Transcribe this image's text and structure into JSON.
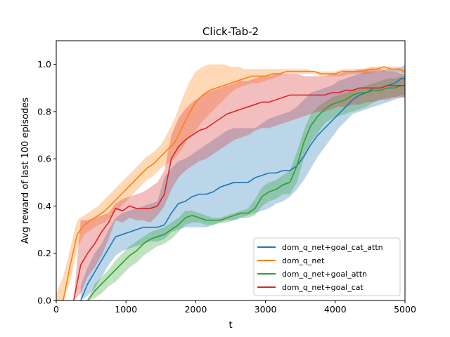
{
  "chart_data": {
    "type": "line",
    "title": "Click-Tab-2",
    "xlabel": "t",
    "ylabel": "Avg reward of last 100 episodes",
    "xlim": [
      0,
      5000
    ],
    "ylim": [
      0,
      1.1
    ],
    "xticks": [
      "0",
      "1000",
      "2000",
      "3000",
      "4000",
      "5000"
    ],
    "yticks": [
      "0.0",
      "0.2",
      "0.4",
      "0.6",
      "0.8",
      "1.0"
    ],
    "grid": false,
    "legend_position": "lower-right",
    "series": [
      {
        "name": "dom_q_net+goal_cat_attn",
        "color": "#1f77b4",
        "x": [
          350,
          450,
          550,
          650,
          750,
          850,
          950,
          1050,
          1150,
          1250,
          1350,
          1450,
          1550,
          1650,
          1750,
          1850,
          1950,
          2050,
          2150,
          2250,
          2350,
          2450,
          2550,
          2650,
          2750,
          2850,
          2950,
          3050,
          3150,
          3250,
          3350,
          3450,
          3550,
          3650,
          3750,
          3850,
          3950,
          4050,
          4150,
          4250,
          4350,
          4450,
          4550,
          4650,
          4750,
          4850,
          4950,
          5000
        ],
        "mean": [
          0.0,
          0.07,
          0.12,
          0.17,
          0.22,
          0.27,
          0.28,
          0.29,
          0.3,
          0.31,
          0.31,
          0.31,
          0.32,
          0.37,
          0.41,
          0.42,
          0.44,
          0.45,
          0.45,
          0.46,
          0.48,
          0.49,
          0.5,
          0.5,
          0.5,
          0.52,
          0.53,
          0.54,
          0.54,
          0.55,
          0.55,
          0.57,
          0.61,
          0.66,
          0.7,
          0.73,
          0.76,
          0.79,
          0.82,
          0.85,
          0.87,
          0.88,
          0.9,
          0.9,
          0.91,
          0.92,
          0.94,
          0.94
        ],
        "upper": [
          0.06,
          0.14,
          0.2,
          0.24,
          0.3,
          0.35,
          0.37,
          0.38,
          0.39,
          0.4,
          0.41,
          0.42,
          0.52,
          0.56,
          0.59,
          0.6,
          0.62,
          0.64,
          0.66,
          0.68,
          0.7,
          0.72,
          0.73,
          0.73,
          0.73,
          0.73,
          0.75,
          0.77,
          0.78,
          0.79,
          0.8,
          0.82,
          0.85,
          0.88,
          0.89,
          0.9,
          0.91,
          0.93,
          0.94,
          0.95,
          0.96,
          0.97,
          0.97,
          0.97,
          0.98,
          0.98,
          0.99,
          1.0
        ],
        "lower": [
          0.0,
          0.02,
          0.05,
          0.1,
          0.15,
          0.19,
          0.21,
          0.22,
          0.23,
          0.24,
          0.25,
          0.25,
          0.26,
          0.29,
          0.3,
          0.31,
          0.31,
          0.31,
          0.31,
          0.32,
          0.33,
          0.34,
          0.34,
          0.35,
          0.36,
          0.37,
          0.38,
          0.39,
          0.41,
          0.42,
          0.44,
          0.47,
          0.51,
          0.56,
          0.61,
          0.65,
          0.69,
          0.73,
          0.76,
          0.79,
          0.8,
          0.81,
          0.82,
          0.83,
          0.84,
          0.85,
          0.86,
          0.86
        ]
      },
      {
        "name": "dom_q_net",
        "color": "#ff7f0e",
        "x": [
          0,
          100,
          200,
          300,
          400,
          500,
          600,
          700,
          800,
          900,
          1000,
          1100,
          1200,
          1300,
          1400,
          1500,
          1600,
          1700,
          1800,
          1900,
          2000,
          2100,
          2200,
          2300,
          2400,
          2500,
          2600,
          2700,
          2800,
          2900,
          3000,
          3100,
          3200,
          3300,
          3400,
          3500,
          3600,
          3700,
          3800,
          3900,
          4000,
          4100,
          4200,
          4300,
          4400,
          4500,
          4600,
          4700,
          4800,
          4900,
          5000
        ],
        "mean": [
          0.0,
          0.0,
          0.15,
          0.28,
          0.32,
          0.34,
          0.36,
          0.38,
          0.41,
          0.44,
          0.47,
          0.5,
          0.53,
          0.56,
          0.58,
          0.61,
          0.64,
          0.67,
          0.73,
          0.79,
          0.84,
          0.87,
          0.89,
          0.9,
          0.91,
          0.92,
          0.93,
          0.94,
          0.95,
          0.95,
          0.95,
          0.96,
          0.96,
          0.97,
          0.97,
          0.97,
          0.97,
          0.97,
          0.96,
          0.96,
          0.96,
          0.97,
          0.97,
          0.97,
          0.97,
          0.98,
          0.98,
          0.99,
          0.98,
          0.98,
          0.97
        ],
        "upper": [
          0.03,
          0.1,
          0.22,
          0.34,
          0.36,
          0.38,
          0.4,
          0.43,
          0.46,
          0.49,
          0.52,
          0.55,
          0.58,
          0.61,
          0.63,
          0.66,
          0.71,
          0.77,
          0.85,
          0.92,
          0.97,
          0.99,
          1.0,
          1.0,
          1.0,
          0.99,
          0.99,
          0.98,
          0.98,
          0.98,
          0.98,
          0.98,
          0.98,
          0.98,
          0.98,
          0.98,
          0.98,
          0.97,
          0.97,
          0.97,
          0.97,
          0.98,
          0.98,
          0.98,
          0.98,
          0.99,
          0.99,
          0.99,
          0.99,
          0.99,
          0.98
        ],
        "lower": [
          0.0,
          0.0,
          0.08,
          0.22,
          0.28,
          0.3,
          0.32,
          0.33,
          0.36,
          0.39,
          0.42,
          0.45,
          0.48,
          0.51,
          0.53,
          0.56,
          0.58,
          0.6,
          0.64,
          0.69,
          0.72,
          0.76,
          0.79,
          0.82,
          0.85,
          0.88,
          0.9,
          0.91,
          0.92,
          0.92,
          0.93,
          0.94,
          0.95,
          0.96,
          0.96,
          0.96,
          0.96,
          0.96,
          0.95,
          0.95,
          0.95,
          0.95,
          0.96,
          0.96,
          0.96,
          0.96,
          0.97,
          0.97,
          0.97,
          0.97,
          0.96
        ]
      },
      {
        "name": "dom_q_net+goal_attn",
        "color": "#2ca02c",
        "x": [
          450,
          550,
          650,
          750,
          850,
          950,
          1050,
          1150,
          1250,
          1350,
          1450,
          1550,
          1650,
          1750,
          1850,
          1950,
          2050,
          2150,
          2250,
          2350,
          2450,
          2550,
          2650,
          2750,
          2850,
          2950,
          3050,
          3150,
          3250,
          3350,
          3450,
          3550,
          3650,
          3750,
          3850,
          3950,
          4050,
          4150,
          4250,
          4350,
          4450,
          4550,
          4650,
          4750,
          4850,
          4950,
          5000
        ],
        "mean": [
          0.0,
          0.04,
          0.07,
          0.1,
          0.13,
          0.16,
          0.19,
          0.21,
          0.24,
          0.26,
          0.27,
          0.28,
          0.3,
          0.32,
          0.35,
          0.36,
          0.35,
          0.34,
          0.34,
          0.34,
          0.35,
          0.36,
          0.37,
          0.37,
          0.39,
          0.44,
          0.46,
          0.47,
          0.49,
          0.5,
          0.57,
          0.67,
          0.74,
          0.78,
          0.81,
          0.83,
          0.84,
          0.85,
          0.87,
          0.88,
          0.88,
          0.89,
          0.89,
          0.9,
          0.9,
          0.91,
          0.91
        ],
        "upper": [
          0.0,
          0.07,
          0.1,
          0.13,
          0.17,
          0.2,
          0.23,
          0.25,
          0.27,
          0.29,
          0.3,
          0.31,
          0.33,
          0.35,
          0.38,
          0.38,
          0.37,
          0.36,
          0.35,
          0.35,
          0.36,
          0.37,
          0.38,
          0.39,
          0.43,
          0.48,
          0.5,
          0.51,
          0.53,
          0.55,
          0.63,
          0.72,
          0.79,
          0.82,
          0.84,
          0.86,
          0.87,
          0.88,
          0.89,
          0.9,
          0.91,
          0.92,
          0.93,
          0.94,
          0.94,
          0.95,
          0.95
        ],
        "lower": [
          0.0,
          0.01,
          0.03,
          0.06,
          0.08,
          0.11,
          0.14,
          0.16,
          0.19,
          0.21,
          0.23,
          0.24,
          0.26,
          0.29,
          0.32,
          0.33,
          0.33,
          0.32,
          0.32,
          0.33,
          0.33,
          0.34,
          0.35,
          0.35,
          0.36,
          0.4,
          0.42,
          0.43,
          0.45,
          0.45,
          0.5,
          0.6,
          0.67,
          0.71,
          0.75,
          0.77,
          0.78,
          0.79,
          0.8,
          0.81,
          0.82,
          0.84,
          0.85,
          0.86,
          0.86,
          0.87,
          0.87
        ]
      },
      {
        "name": "dom_q_net+goal_cat",
        "color": "#d62728",
        "x": [
          250,
          350,
          450,
          550,
          650,
          750,
          850,
          950,
          1050,
          1150,
          1250,
          1350,
          1450,
          1550,
          1650,
          1750,
          1850,
          1950,
          2050,
          2150,
          2250,
          2350,
          2450,
          2550,
          2650,
          2750,
          2850,
          2950,
          3050,
          3150,
          3250,
          3350,
          3450,
          3550,
          3650,
          3750,
          3850,
          3950,
          4050,
          4150,
          4250,
          4350,
          4450,
          4550,
          4650,
          4750,
          4850,
          4950,
          5000
        ],
        "mean": [
          0.0,
          0.15,
          0.2,
          0.24,
          0.29,
          0.33,
          0.39,
          0.38,
          0.4,
          0.39,
          0.39,
          0.39,
          0.4,
          0.45,
          0.6,
          0.65,
          0.68,
          0.7,
          0.72,
          0.73,
          0.75,
          0.77,
          0.79,
          0.8,
          0.81,
          0.82,
          0.83,
          0.84,
          0.84,
          0.85,
          0.86,
          0.87,
          0.87,
          0.87,
          0.87,
          0.87,
          0.87,
          0.88,
          0.88,
          0.89,
          0.89,
          0.9,
          0.9,
          0.9,
          0.9,
          0.91,
          0.91,
          0.91,
          0.91
        ],
        "upper": [
          0.0,
          0.34,
          0.34,
          0.35,
          0.36,
          0.37,
          0.41,
          0.43,
          0.44,
          0.45,
          0.46,
          0.48,
          0.5,
          0.55,
          0.7,
          0.77,
          0.81,
          0.84,
          0.86,
          0.88,
          0.89,
          0.9,
          0.91,
          0.92,
          0.93,
          0.93,
          0.94,
          0.95,
          0.95,
          0.96,
          0.96,
          0.96,
          0.96,
          0.95,
          0.95,
          0.95,
          0.95,
          0.96,
          0.96,
          0.97,
          0.97,
          0.98,
          0.98,
          0.98,
          0.98,
          0.97,
          0.97,
          0.96,
          0.96
        ],
        "lower": [
          0.0,
          0.03,
          0.1,
          0.14,
          0.19,
          0.26,
          0.34,
          0.33,
          0.35,
          0.34,
          0.34,
          0.33,
          0.36,
          0.4,
          0.47,
          0.52,
          0.55,
          0.57,
          0.59,
          0.6,
          0.62,
          0.64,
          0.66,
          0.68,
          0.69,
          0.7,
          0.72,
          0.73,
          0.73,
          0.74,
          0.75,
          0.76,
          0.77,
          0.78,
          0.79,
          0.8,
          0.8,
          0.81,
          0.82,
          0.82,
          0.83,
          0.83,
          0.84,
          0.84,
          0.85,
          0.85,
          0.86,
          0.86,
          0.86
        ]
      }
    ]
  }
}
